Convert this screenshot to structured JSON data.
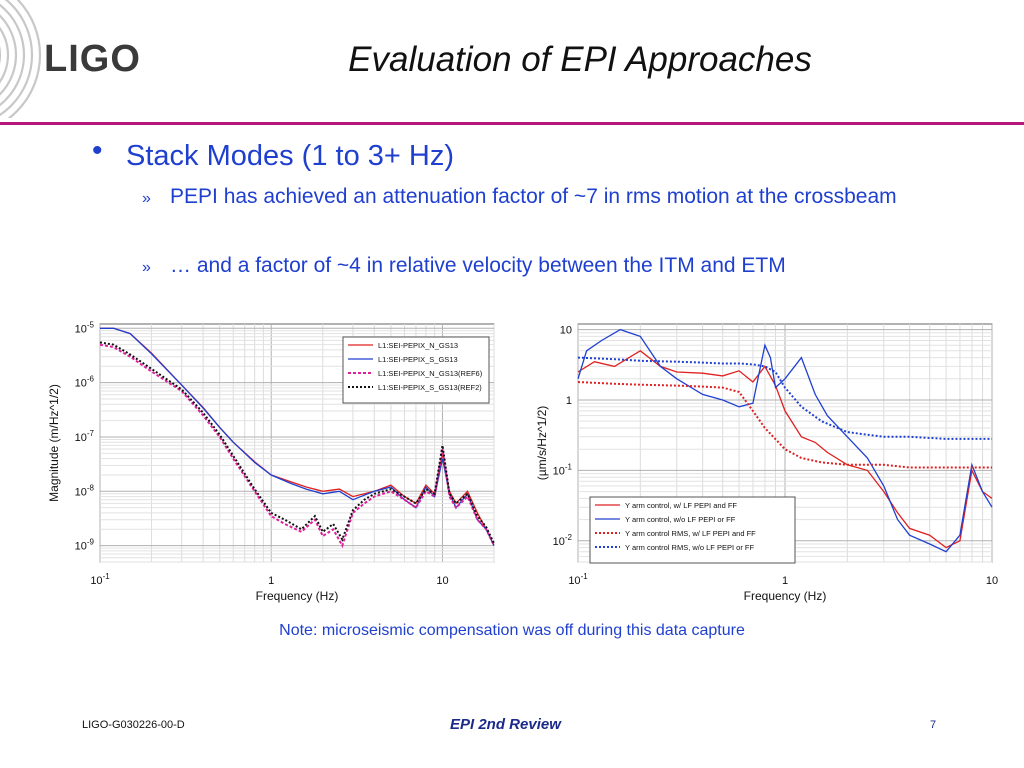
{
  "logo": {
    "text": "LIGO"
  },
  "slide": {
    "title": "Evaluation of EPI Approaches"
  },
  "bullets": {
    "main": "Stack Modes (1 to 3+ Hz)",
    "sub_mark": "»",
    "sub": [
      "PEPI has achieved an attenuation factor of ~7 in rms motion at the crossbeam",
      "… and a factor of ~4 in relative velocity between the ITM and ETM"
    ]
  },
  "colors": {
    "accent_rule": "#b8177a",
    "text_blue": "#1f3fcf",
    "footer_blue": "#1b2a8a"
  },
  "chart_data": [
    {
      "type": "line",
      "xlabel": "Frequency (Hz)",
      "ylabel": "Magnitude (m/Hz^1/2)",
      "xscale": "log",
      "yscale": "log",
      "xlim": [
        0.1,
        20
      ],
      "ylim": [
        5e-10,
        1.2e-05
      ],
      "x_ticks": [
        {
          "v": 0.1,
          "label": "10-1"
        },
        {
          "v": 1,
          "label": "1"
        },
        {
          "v": 10,
          "label": "10"
        }
      ],
      "y_ticks": [
        {
          "v": 1e-05,
          "label": "10-5"
        },
        {
          "v": 1e-06,
          "label": "10-6"
        },
        {
          "v": 1e-07,
          "label": "10-7"
        },
        {
          "v": 1e-08,
          "label": "10-8"
        },
        {
          "v": 1e-09,
          "label": "10-9"
        }
      ],
      "grid": true,
      "legend": "top-right",
      "series": [
        {
          "name": "L1:SEI-PEPIX_N_GS13",
          "color": "#e02020",
          "dash": "",
          "x": [
            0.1,
            0.12,
            0.15,
            0.2,
            0.3,
            0.4,
            0.5,
            0.6,
            0.8,
            1.0,
            1.3,
            1.6,
            2.0,
            2.5,
            3,
            4,
            5,
            6,
            7,
            8,
            9,
            10,
            11,
            12,
            14,
            16,
            18,
            20
          ],
          "y": [
            1e-05,
            1e-05,
            8e-06,
            3.5e-06,
            9e-07,
            3.5e-07,
            1.5e-07,
            8e-08,
            3.5e-08,
            2e-08,
            1.5e-08,
            1.2e-08,
            1e-08,
            1.1e-08,
            8e-09,
            1e-08,
            1.3e-08,
            8e-09,
            6e-09,
            1.3e-08,
            9e-09,
            5e-08,
            1e-08,
            6e-09,
            1e-08,
            4e-09,
            2e-09,
            1e-09
          ]
        },
        {
          "name": "L1:SEI-PEPIX_S_GS13",
          "color": "#2040d0",
          "dash": "",
          "x": [
            0.1,
            0.12,
            0.15,
            0.2,
            0.3,
            0.4,
            0.5,
            0.6,
            0.8,
            1.0,
            1.3,
            1.6,
            2.0,
            2.5,
            3,
            4,
            5,
            6,
            7,
            8,
            9,
            10,
            11,
            12,
            14,
            16,
            18,
            20
          ],
          "y": [
            1e-05,
            1e-05,
            8e-06,
            3.4e-06,
            9e-07,
            3.4e-07,
            1.5e-07,
            8e-08,
            3.4e-08,
            2e-08,
            1.4e-08,
            1.1e-08,
            9e-09,
            1e-08,
            7e-09,
            1e-08,
            1.2e-08,
            7e-09,
            5e-09,
            1.2e-08,
            8e-09,
            4e-08,
            9e-09,
            5e-09,
            9e-09,
            3e-09,
            2e-09,
            1e-09
          ]
        },
        {
          "name": "L1:SEI-PEPIX_N_GS13(REF6)",
          "color": "#e0209a",
          "dash": "3,2",
          "x": [
            0.1,
            0.12,
            0.15,
            0.2,
            0.3,
            0.4,
            0.5,
            0.6,
            0.8,
            1.0,
            1.2,
            1.5,
            1.8,
            2.0,
            2.3,
            2.6,
            3,
            3.5,
            4,
            5,
            6,
            7,
            8,
            9,
            10,
            11,
            12,
            14,
            16,
            18,
            20
          ],
          "y": [
            5e-06,
            4.5e-06,
            3e-06,
            1.6e-06,
            7e-07,
            2.5e-07,
            1e-07,
            4e-08,
            1e-08,
            3.5e-09,
            2.5e-09,
            1.8e-09,
            3e-09,
            1.5e-09,
            2e-09,
            1e-09,
            4e-09,
            6e-09,
            8e-09,
            1e-08,
            7e-09,
            5e-09,
            1e-08,
            8e-09,
            6e-08,
            8e-09,
            5e-09,
            8e-09,
            3e-09,
            2e-09,
            1e-09
          ]
        },
        {
          "name": "L1:SEI-PEPIX_S_GS13(REF2)",
          "color": "#111111",
          "dash": "2,2",
          "x": [
            0.1,
            0.12,
            0.15,
            0.2,
            0.3,
            0.4,
            0.5,
            0.6,
            0.8,
            1.0,
            1.2,
            1.5,
            1.8,
            2.0,
            2.3,
            2.6,
            3,
            3.5,
            4,
            5,
            6,
            7,
            8,
            9,
            10,
            11,
            12,
            14,
            16,
            18,
            20
          ],
          "y": [
            5.5e-06,
            5e-06,
            3.3e-06,
            1.8e-06,
            7.5e-07,
            2.8e-07,
            1.1e-07,
            4.5e-08,
            1.1e-08,
            4e-09,
            3e-09,
            2e-09,
            3.5e-09,
            1.8e-09,
            2.5e-09,
            1.3e-09,
            4.5e-09,
            7e-09,
            9e-09,
            1.1e-08,
            8e-09,
            6e-09,
            1.1e-08,
            9e-09,
            7e-08,
            9e-09,
            6e-09,
            9e-09,
            3.5e-09,
            2.2e-09,
            1.1e-09
          ]
        }
      ]
    },
    {
      "type": "line",
      "xlabel": "Frequency (Hz)",
      "ylabel": "(µm/s/Hz^1/2)",
      "xscale": "log",
      "yscale": "log",
      "xlim": [
        0.1,
        10
      ],
      "ylim": [
        0.005,
        12
      ],
      "x_ticks": [
        {
          "v": 0.1,
          "label": "10-1"
        },
        {
          "v": 1,
          "label": "1"
        },
        {
          "v": 10,
          "label": "10"
        }
      ],
      "y_ticks": [
        {
          "v": 10,
          "label": "10"
        },
        {
          "v": 1,
          "label": "1"
        },
        {
          "v": 0.1,
          "label": "10-1"
        },
        {
          "v": 0.01,
          "label": "10-2"
        }
      ],
      "grid": true,
      "legend": "bottom-right",
      "series": [
        {
          "name": "Y arm control, w/ LF PEPI and FF",
          "color": "#e02020",
          "dash": "",
          "x": [
            0.1,
            0.12,
            0.15,
            0.2,
            0.25,
            0.3,
            0.4,
            0.5,
            0.6,
            0.7,
            0.8,
            0.9,
            1.0,
            1.2,
            1.4,
            1.6,
            2.0,
            2.5,
            3,
            3.5,
            4,
            5,
            6,
            7,
            8,
            9,
            10
          ],
          "y": [
            2.5,
            3.5,
            3,
            5,
            3,
            2.5,
            2.4,
            2.2,
            2.6,
            1.8,
            3,
            1.6,
            0.7,
            0.3,
            0.25,
            0.18,
            0.12,
            0.1,
            0.05,
            0.025,
            0.015,
            0.012,
            0.008,
            0.01,
            0.1,
            0.05,
            0.04
          ]
        },
        {
          "name": "Y arm control, w/o LF PEPI or FF",
          "color": "#2040d0",
          "dash": "",
          "x": [
            0.1,
            0.11,
            0.13,
            0.16,
            0.2,
            0.25,
            0.3,
            0.4,
            0.5,
            0.6,
            0.7,
            0.8,
            0.85,
            0.9,
            1.0,
            1.2,
            1.4,
            1.6,
            2.0,
            2.5,
            3,
            3.5,
            4,
            5,
            6,
            7,
            8,
            9,
            10
          ],
          "y": [
            2,
            5,
            7,
            10,
            8,
            3,
            2,
            1.2,
            1.0,
            0.8,
            0.9,
            6,
            4,
            1.5,
            2,
            4,
            1.2,
            0.6,
            0.3,
            0.15,
            0.06,
            0.02,
            0.012,
            0.009,
            0.007,
            0.012,
            0.12,
            0.05,
            0.03
          ]
        },
        {
          "name": "Y arm control RMS, w/ LF PEPI and FF",
          "color": "#e02020",
          "dash": "2,2",
          "x": [
            0.1,
            0.15,
            0.2,
            0.3,
            0.4,
            0.5,
            0.6,
            0.7,
            0.8,
            1.0,
            1.2,
            1.5,
            2.0,
            3,
            4,
            6,
            10
          ],
          "y": [
            1.8,
            1.7,
            1.65,
            1.6,
            1.55,
            1.5,
            1.3,
            0.7,
            0.4,
            0.2,
            0.15,
            0.13,
            0.12,
            0.12,
            0.11,
            0.11,
            0.11
          ]
        },
        {
          "name": "Y arm control RMS, w/o LF PEPI or FF",
          "color": "#2040d0",
          "dash": "2,2",
          "x": [
            0.1,
            0.15,
            0.2,
            0.3,
            0.4,
            0.5,
            0.6,
            0.7,
            0.8,
            0.9,
            1.0,
            1.2,
            1.5,
            2.0,
            3,
            4,
            6,
            10
          ],
          "y": [
            4,
            3.8,
            3.6,
            3.5,
            3.4,
            3.3,
            3.3,
            3.2,
            3.0,
            2.5,
            1.5,
            0.8,
            0.5,
            0.35,
            0.3,
            0.3,
            0.28,
            0.28
          ]
        }
      ]
    }
  ],
  "note": "Note: microseismic compensation was off during this data capture",
  "footer": {
    "doc_id": "LIGO-G030226-00-D",
    "center": "EPI 2nd Review",
    "page": "7"
  }
}
